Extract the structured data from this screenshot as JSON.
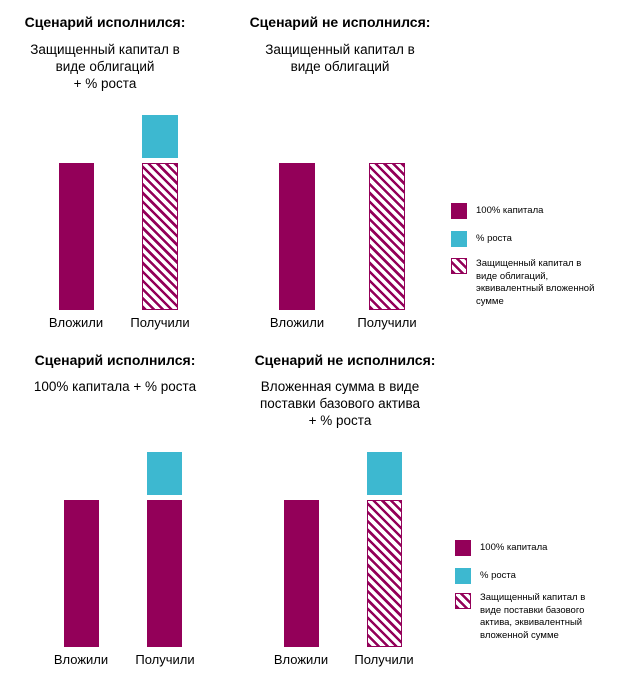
{
  "panels": [
    {
      "title": "Сценарий исполнился:",
      "subtitle": [
        "Защищенный капитал в",
        "виде облигаций",
        "+ % роста"
      ],
      "categories": [
        "Вложили",
        "Получили"
      ]
    },
    {
      "title": "Сценарий не исполнился:",
      "subtitle": [
        "Защищенный капитал в",
        "виде облигаций"
      ],
      "categories": [
        "Вложили",
        "Получили"
      ]
    },
    {
      "title": "Сценарий исполнился:",
      "subtitle": [
        "100% капитала + % роста"
      ],
      "categories": [
        "Вложили",
        "Получили"
      ]
    },
    {
      "title": "Сценарий не исполнился:",
      "subtitle": [
        "Вложенная сумма в виде",
        "поставки базового актива",
        "+ % роста"
      ],
      "categories": [
        "Вложили",
        "Получили"
      ]
    }
  ],
  "legend_top": {
    "items": [
      {
        "label": [
          "100% капитала"
        ],
        "swatch": "solid",
        "color": "#930059"
      },
      {
        "label": [
          "% роста"
        ],
        "swatch": "solid",
        "color": "#3db8d0"
      },
      {
        "label": [
          "Защищенный капитал в",
          "виде облигаций,",
          "эквивалентный вложенной",
          "сумме"
        ],
        "swatch": "hatch",
        "color": "#930059"
      }
    ]
  },
  "legend_bottom": {
    "items": [
      {
        "label": [
          "100% капитала"
        ],
        "swatch": "solid",
        "color": "#930059"
      },
      {
        "label": [
          "% роста"
        ],
        "swatch": "solid",
        "color": "#3db8d0"
      },
      {
        "label": [
          "Защищенный капитал в",
          "виде поставки базового",
          "актива, эквивалентный",
          "вложенной сумме"
        ],
        "swatch": "hatch",
        "color": "#930059"
      }
    ]
  },
  "colors": {
    "capital": "#930059",
    "growth": "#3db8d0"
  }
}
